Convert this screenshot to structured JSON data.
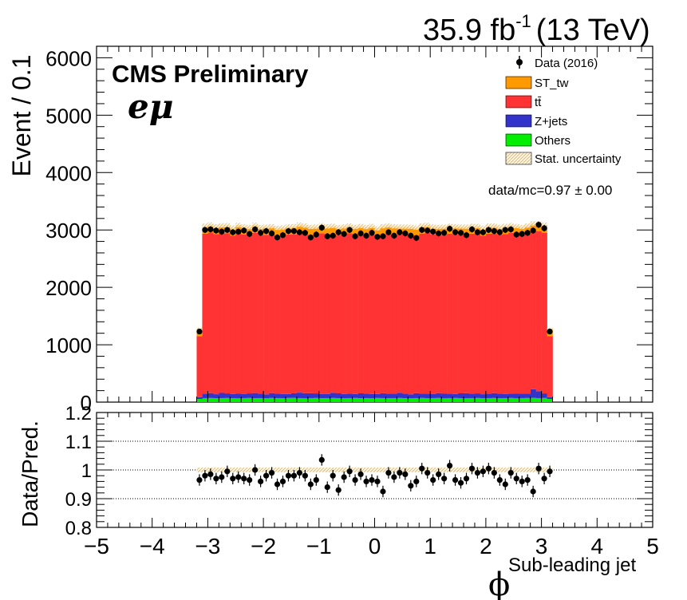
{
  "header": {
    "lumi_value": "35.9 fb",
    "lumi_exp": "-1",
    "energy": "(13 TeV)",
    "experiment": "CMS Preliminary",
    "channel": "eμ",
    "ratio_text": "data/mc=0.97 ± 0.00"
  },
  "colors": {
    "st_tw": "#ff9900",
    "ttbar": "#ff3333",
    "zjets": "#3333cc",
    "others": "#00ee00",
    "data": "#000000",
    "stat_unc": "#e8c870"
  },
  "chart_data": [
    {
      "type": "bar",
      "stacked": true,
      "ylabel": "Event / 0.1",
      "xlabel": "ϕ",
      "xlabel_sub": "Sub-leading jet",
      "xlim": [
        -5,
        5
      ],
      "ylim": [
        0,
        6200
      ],
      "yticks": [
        0,
        1000,
        2000,
        3000,
        4000,
        5000,
        6000
      ],
      "xticks": [
        -5,
        -4,
        -3,
        -2,
        -1,
        0,
        1,
        2,
        3,
        4,
        5
      ],
      "bin_width": 0.1,
      "bins_low": [
        -3.2,
        -3.1,
        -3.0,
        -2.9,
        -2.8,
        -2.7,
        -2.6,
        -2.5,
        -2.4,
        -2.3,
        -2.2,
        -2.1,
        -2.0,
        -1.9,
        -1.8,
        -1.7,
        -1.6,
        -1.5,
        -1.4,
        -1.3,
        -1.2,
        -1.1,
        -1.0,
        -0.9,
        -0.8,
        -0.7,
        -0.6,
        -0.5,
        -0.4,
        -0.3,
        -0.2,
        -0.1,
        0.0,
        0.1,
        0.2,
        0.3,
        0.4,
        0.5,
        0.6,
        0.7,
        0.8,
        0.9,
        1.0,
        1.1,
        1.2,
        1.3,
        1.4,
        1.5,
        1.6,
        1.7,
        1.8,
        1.9,
        2.0,
        2.1,
        2.2,
        2.3,
        2.4,
        2.5,
        2.6,
        2.7,
        2.8,
        2.9,
        3.0,
        3.1
      ],
      "legend": {
        "position": "top-right",
        "entries": [
          "Data (2016)",
          "ST_tw",
          "tt̄",
          "Z+jets",
          "Others",
          "Stat. uncertainty"
        ]
      },
      "series": [
        {
          "name": "Others",
          "values": [
            55,
            70,
            72,
            68,
            70,
            72,
            68,
            66,
            70,
            72,
            68,
            70,
            66,
            72,
            70,
            68,
            72,
            74,
            70,
            66,
            70,
            72,
            68,
            70,
            72,
            68,
            66,
            70,
            72,
            68,
            70,
            66,
            72,
            70,
            68,
            70,
            72,
            68,
            66,
            70,
            72,
            68,
            70,
            72,
            66,
            70,
            72,
            68,
            66,
            70,
            72,
            68,
            70,
            72,
            68,
            70,
            72,
            66,
            70,
            72,
            74,
            70,
            72,
            55
          ]
        },
        {
          "name": "Z+jets",
          "values": [
            30,
            75,
            85,
            70,
            90,
            80,
            75,
            85,
            70,
            80,
            90,
            75,
            70,
            85,
            80,
            75,
            70,
            80,
            95,
            90,
            85,
            80,
            75,
            70,
            90,
            85,
            75,
            80,
            70,
            85,
            80,
            75,
            70,
            85,
            80,
            75,
            90,
            80,
            70,
            85,
            75,
            80,
            70,
            85,
            80,
            75,
            70,
            85,
            90,
            75,
            80,
            70,
            75,
            85,
            80,
            70,
            75,
            85,
            80,
            75,
            150,
            120,
            80,
            30
          ]
        },
        {
          "name": "tt̄",
          "values": [
            1065,
            2790,
            2800,
            2790,
            2780,
            2790,
            2760,
            2800,
            2780,
            2760,
            2790,
            2770,
            2780,
            2770,
            2750,
            2760,
            2780,
            2770,
            2790,
            2780,
            2760,
            2770,
            2800,
            2780,
            2770,
            2760,
            2780,
            2790,
            2770,
            2780,
            2760,
            2790,
            2750,
            2770,
            2790,
            2780,
            2760,
            2770,
            2780,
            2750,
            2790,
            2800,
            2780,
            2760,
            2770,
            2790,
            2780,
            2770,
            2760,
            2790,
            2780,
            2760,
            2790,
            2780,
            2770,
            2790,
            2800,
            2780,
            2760,
            2790,
            2750,
            2790,
            2800,
            1065
          ]
        },
        {
          "name": "ST_tw",
          "values": [
            130,
            140,
            138,
            136,
            140,
            142,
            138,
            136,
            140,
            138,
            142,
            136,
            140,
            138,
            136,
            140,
            138,
            142,
            136,
            140,
            138,
            136,
            140,
            142,
            138,
            136,
            140,
            138,
            142,
            136,
            140,
            138,
            136,
            140,
            142,
            138,
            136,
            140,
            138,
            136,
            142,
            140,
            138,
            136,
            140,
            138,
            142,
            136,
            140,
            138,
            136,
            140,
            142,
            138,
            136,
            140,
            138,
            136,
            142,
            140,
            138,
            136,
            140,
            130
          ]
        }
      ],
      "data_points": [
        1230,
        3000,
        3010,
        2990,
        2970,
        3000,
        2960,
        2970,
        2990,
        2930,
        3010,
        2950,
        2980,
        2940,
        2870,
        2910,
        2980,
        2980,
        2960,
        2950,
        2870,
        2920,
        3040,
        2890,
        2900,
        2960,
        2930,
        3000,
        2890,
        2940,
        2900,
        2950,
        2880,
        2890,
        2960,
        2900,
        2960,
        2940,
        2900,
        2860,
        3000,
        2990,
        2970,
        2940,
        2950,
        3020,
        2960,
        2950,
        2910,
        3010,
        2960,
        2960,
        3000,
        2980,
        2960,
        3000,
        3010,
        2920,
        2930,
        2950,
        2990,
        3090,
        3030,
        1230
      ]
    },
    {
      "type": "scatter",
      "ylabel": "Data/Pred.",
      "xlim": [
        -5,
        5
      ],
      "ylim": [
        0.8,
        1.2
      ],
      "yticks": [
        0.8,
        0.9,
        1,
        1.1,
        1.2
      ],
      "reference_lines": [
        0.9,
        1.0,
        1.1
      ],
      "values": [
        0.965,
        0.98,
        0.985,
        0.97,
        0.975,
        0.995,
        0.97,
        0.975,
        0.97,
        0.965,
        1.0,
        0.96,
        0.98,
        0.99,
        0.95,
        0.96,
        0.98,
        0.98,
        0.99,
        0.98,
        0.95,
        0.965,
        1.035,
        0.94,
        0.98,
        0.93,
        0.975,
        0.995,
        0.965,
        0.985,
        0.96,
        0.965,
        0.96,
        0.925,
        0.99,
        0.975,
        0.99,
        0.985,
        0.945,
        0.96,
        1.005,
        0.99,
        0.965,
        0.985,
        0.97,
        1.015,
        0.965,
        0.955,
        0.97,
        1.005,
        0.99,
        0.995,
        1.005,
        0.99,
        0.965,
        0.95,
        0.99,
        0.97,
        0.96,
        0.965,
        0.925,
        1.005,
        0.97,
        0.995
      ],
      "errors": 0.02,
      "band": 0.008
    }
  ]
}
